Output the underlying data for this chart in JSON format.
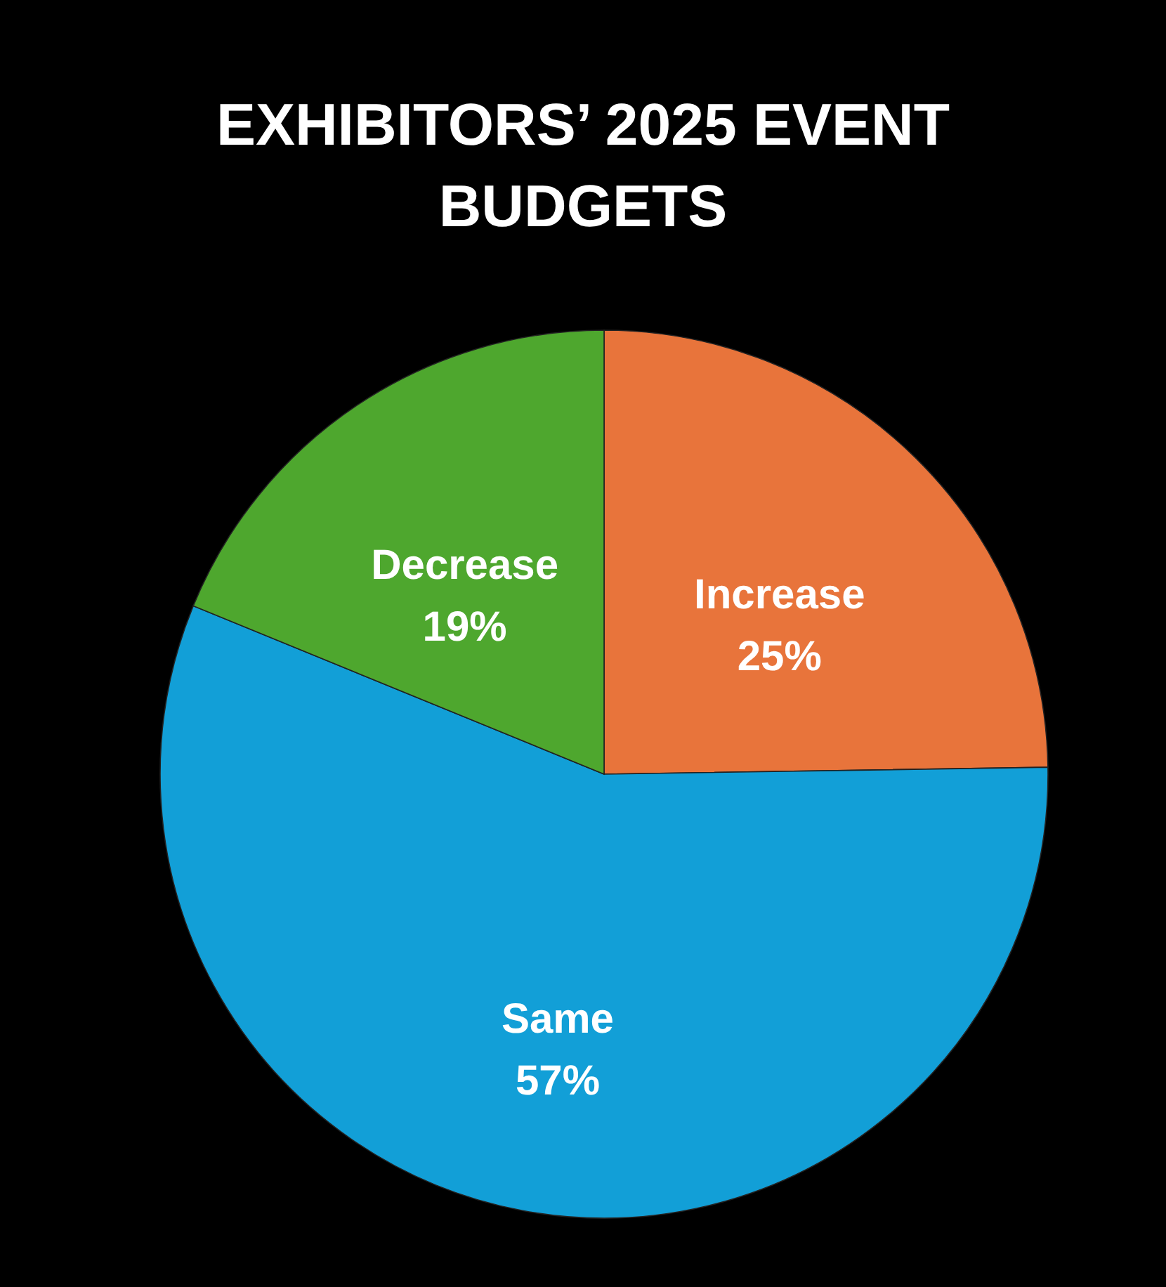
{
  "chart_data": {
    "type": "pie",
    "title": "EXHIBITORS’ 2025 EVENT BUDGETS",
    "categories": [
      "Increase",
      "Same",
      "Decrease"
    ],
    "values": [
      25,
      57,
      19
    ],
    "value_labels": [
      "25%",
      "57%",
      "19%"
    ],
    "colors": [
      "#e8743b",
      "#129fd7",
      "#4ea72e"
    ]
  }
}
